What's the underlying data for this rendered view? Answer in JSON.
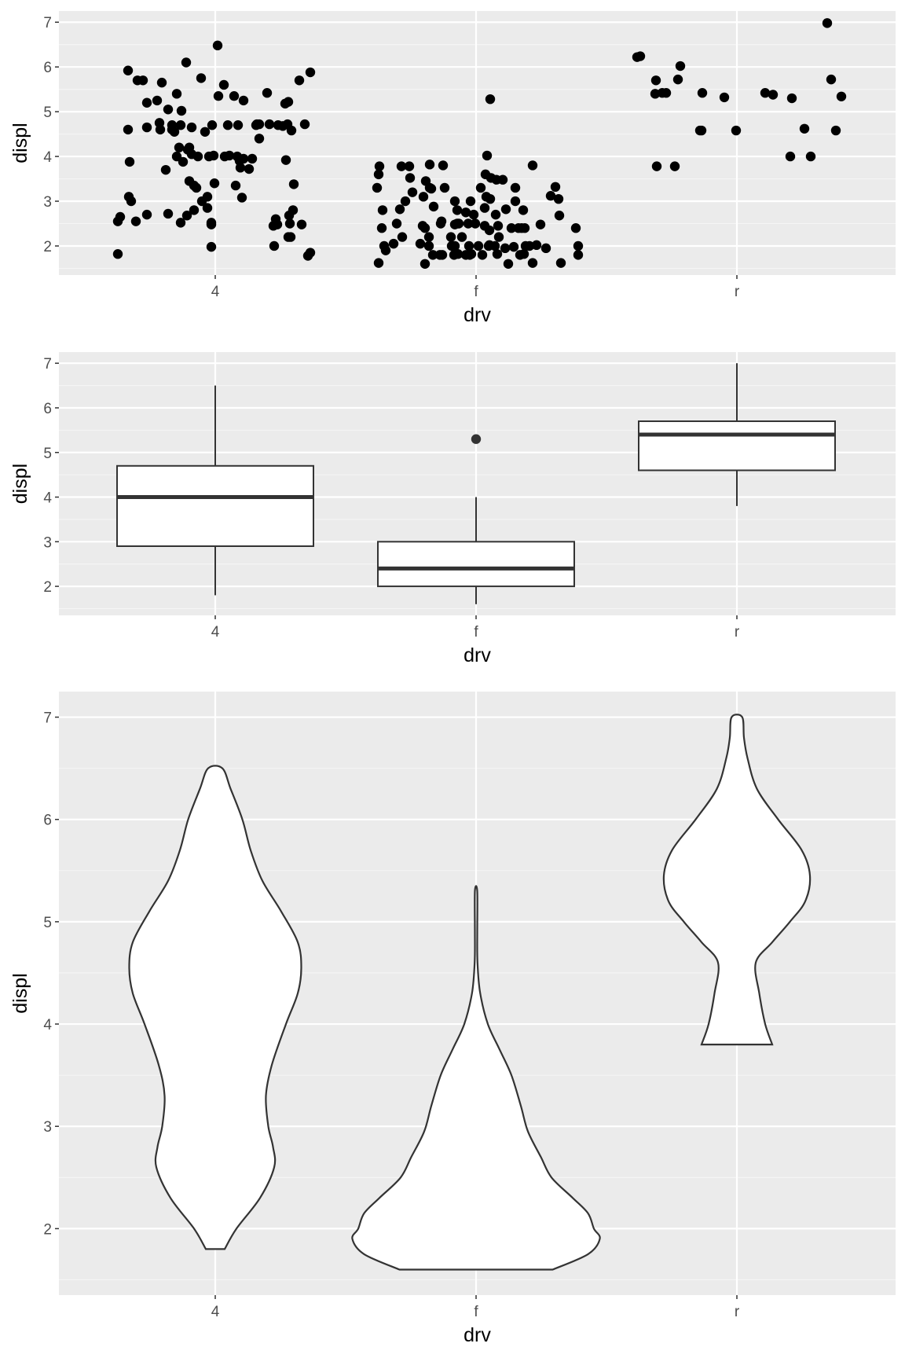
{
  "colors": {
    "panel": "#ebebeb",
    "grid_major": "#ffffff",
    "grid_minor": "#f5f5f5",
    "ink": "#333333",
    "point": "#000000",
    "tick_text": "#4d4d4d"
  },
  "chart_data": [
    {
      "type": "scatter",
      "geom": "jitter",
      "xlabel": "drv",
      "ylabel": "displ",
      "categories": [
        "4",
        "f",
        "r"
      ],
      "yticks": [
        2,
        3,
        4,
        5,
        6,
        7
      ],
      "ylim": [
        1.35,
        7.25
      ],
      "grid": true,
      "points": [
        {
          "x": "4",
          "y": 5.92
        },
        {
          "x": "4",
          "y": 5.7
        },
        {
          "x": "4",
          "y": 5.7
        },
        {
          "x": "4",
          "y": 5.65
        },
        {
          "x": "4",
          "y": 6.1
        },
        {
          "x": "4",
          "y": 5.75
        },
        {
          "x": "4",
          "y": 5.4
        },
        {
          "x": "4",
          "y": 5.25
        },
        {
          "x": "4",
          "y": 5.2
        },
        {
          "x": "4",
          "y": 5.05
        },
        {
          "x": "4",
          "y": 5.02
        },
        {
          "x": "4",
          "y": 4.75
        },
        {
          "x": "4",
          "y": 4.7
        },
        {
          "x": "4",
          "y": 4.65
        },
        {
          "x": "4",
          "y": 4.6
        },
        {
          "x": "4",
          "y": 4.6
        },
        {
          "x": "4",
          "y": 4.55
        },
        {
          "x": "4",
          "y": 4.2
        },
        {
          "x": "4",
          "y": 4.2
        },
        {
          "x": "4",
          "y": 4.0
        },
        {
          "x": "4",
          "y": 4.05
        },
        {
          "x": "4",
          "y": 3.88
        },
        {
          "x": "4",
          "y": 3.7
        },
        {
          "x": "4",
          "y": 3.45
        },
        {
          "x": "4",
          "y": 3.35
        },
        {
          "x": "4",
          "y": 3.3
        },
        {
          "x": "4",
          "y": 3.1
        },
        {
          "x": "4",
          "y": 3.0
        },
        {
          "x": "4",
          "y": 2.8
        },
        {
          "x": "4",
          "y": 2.72
        },
        {
          "x": "4",
          "y": 2.7
        },
        {
          "x": "4",
          "y": 2.68
        },
        {
          "x": "4",
          "y": 2.65
        },
        {
          "x": "4",
          "y": 2.55
        },
        {
          "x": "4",
          "y": 2.55
        },
        {
          "x": "4",
          "y": 2.52
        },
        {
          "x": "4",
          "y": 4.7
        },
        {
          "x": "4",
          "y": 4.7
        },
        {
          "x": "4",
          "y": 4.7
        },
        {
          "x": "4",
          "y": 4.65
        },
        {
          "x": "4",
          "y": 4.55
        },
        {
          "x": "4",
          "y": 4.15
        },
        {
          "x": "4",
          "y": 4.0
        },
        {
          "x": "4",
          "y": 1.98
        },
        {
          "x": "4",
          "y": 5.35
        },
        {
          "x": "4",
          "y": 5.6
        },
        {
          "x": "4",
          "y": 5.35
        },
        {
          "x": "4",
          "y": 5.25
        },
        {
          "x": "4",
          "y": 4.7
        },
        {
          "x": "4",
          "y": 4.7
        },
        {
          "x": "4",
          "y": 4.72
        },
        {
          "x": "4",
          "y": 4.72
        },
        {
          "x": "4",
          "y": 4.68
        },
        {
          "x": "4",
          "y": 4.4
        },
        {
          "x": "4",
          "y": 4.0
        },
        {
          "x": "4",
          "y": 4.0
        },
        {
          "x": "4",
          "y": 4.02
        },
        {
          "x": "4",
          "y": 4.02
        },
        {
          "x": "4",
          "y": 3.95
        },
        {
          "x": "4",
          "y": 3.95
        },
        {
          "x": "4",
          "y": 3.9
        },
        {
          "x": "4",
          "y": 3.75
        },
        {
          "x": "4",
          "y": 3.4
        },
        {
          "x": "4",
          "y": 3.35
        },
        {
          "x": "4",
          "y": 3.08
        },
        {
          "x": "4",
          "y": 2.85
        },
        {
          "x": "4",
          "y": 2.52
        },
        {
          "x": "4",
          "y": 2.48
        },
        {
          "x": "4",
          "y": 2.48
        },
        {
          "x": "4",
          "y": 6.48
        },
        {
          "x": "4",
          "y": 5.88
        },
        {
          "x": "4",
          "y": 5.7
        },
        {
          "x": "4",
          "y": 5.42
        },
        {
          "x": "4",
          "y": 5.22
        },
        {
          "x": "4",
          "y": 5.18
        },
        {
          "x": "4",
          "y": 4.72
        },
        {
          "x": "4",
          "y": 4.72
        },
        {
          "x": "4",
          "y": 4.72
        },
        {
          "x": "4",
          "y": 4.7
        },
        {
          "x": "4",
          "y": 4.58
        },
        {
          "x": "4",
          "y": 4.0
        },
        {
          "x": "4",
          "y": 3.92
        },
        {
          "x": "4",
          "y": 3.72
        },
        {
          "x": "4",
          "y": 3.38
        },
        {
          "x": "4",
          "y": 2.8
        },
        {
          "x": "4",
          "y": 2.68
        },
        {
          "x": "4",
          "y": 2.6
        },
        {
          "x": "4",
          "y": 2.5
        },
        {
          "x": "4",
          "y": 2.48
        },
        {
          "x": "4",
          "y": 2.45
        },
        {
          "x": "4",
          "y": 2.2
        },
        {
          "x": "4",
          "y": 2.2
        },
        {
          "x": "4",
          "y": 2.0
        },
        {
          "x": "4",
          "y": 1.85
        },
        {
          "x": "4",
          "y": 1.78
        },
        {
          "x": "4",
          "y": 1.82
        },
        {
          "x": "4",
          "y": 3.88
        },
        {
          "x": "4",
          "y": 3.1
        },
        {
          "x": "4",
          "y": 3.0
        },
        {
          "x": "4",
          "y": 4.6
        },
        {
          "x": "f",
          "y": 3.78
        },
        {
          "x": "f",
          "y": 3.6
        },
        {
          "x": "f",
          "y": 3.3
        },
        {
          "x": "f",
          "y": 2.8
        },
        {
          "x": "f",
          "y": 2.4
        },
        {
          "x": "f",
          "y": 2.0
        },
        {
          "x": "f",
          "y": 1.62
        },
        {
          "x": "f",
          "y": 1.9
        },
        {
          "x": "f",
          "y": 2.05
        },
        {
          "x": "f",
          "y": 2.2
        },
        {
          "x": "f",
          "y": 2.5
        },
        {
          "x": "f",
          "y": 2.82
        },
        {
          "x": "f",
          "y": 3.0
        },
        {
          "x": "f",
          "y": 3.52
        },
        {
          "x": "f",
          "y": 3.78
        },
        {
          "x": "f",
          "y": 3.78
        },
        {
          "x": "f",
          "y": 3.1
        },
        {
          "x": "f",
          "y": 3.3
        },
        {
          "x": "f",
          "y": 3.2
        },
        {
          "x": "f",
          "y": 2.45
        },
        {
          "x": "f",
          "y": 2.4
        },
        {
          "x": "f",
          "y": 2.2
        },
        {
          "x": "f",
          "y": 2.05
        },
        {
          "x": "f",
          "y": 1.8
        },
        {
          "x": "f",
          "y": 1.6
        },
        {
          "x": "f",
          "y": 3.82
        },
        {
          "x": "f",
          "y": 3.45
        },
        {
          "x": "f",
          "y": 3.28
        },
        {
          "x": "f",
          "y": 2.88
        },
        {
          "x": "f",
          "y": 2.55
        },
        {
          "x": "f",
          "y": 2.5
        },
        {
          "x": "f",
          "y": 2.0
        },
        {
          "x": "f",
          "y": 1.8
        },
        {
          "x": "f",
          "y": 1.8
        },
        {
          "x": "f",
          "y": 3.8
        },
        {
          "x": "f",
          "y": 3.3
        },
        {
          "x": "f",
          "y": 3.0
        },
        {
          "x": "f",
          "y": 2.8
        },
        {
          "x": "f",
          "y": 2.5
        },
        {
          "x": "f",
          "y": 2.2
        },
        {
          "x": "f",
          "y": 2.0
        },
        {
          "x": "f",
          "y": 1.8
        },
        {
          "x": "f",
          "y": 1.8
        },
        {
          "x": "f",
          "y": 2.5
        },
        {
          "x": "f",
          "y": 2.48
        },
        {
          "x": "f",
          "y": 2.2
        },
        {
          "x": "f",
          "y": 2.0
        },
        {
          "x": "f",
          "y": 1.82
        },
        {
          "x": "f",
          "y": 1.8
        },
        {
          "x": "f",
          "y": 2.75
        },
        {
          "x": "f",
          "y": 2.5
        },
        {
          "x": "f",
          "y": 2.0
        },
        {
          "x": "f",
          "y": 1.82
        },
        {
          "x": "f",
          "y": 3.0
        },
        {
          "x": "f",
          "y": 2.7
        },
        {
          "x": "f",
          "y": 2.5
        },
        {
          "x": "f",
          "y": 2.0
        },
        {
          "x": "f",
          "y": 1.8
        },
        {
          "x": "f",
          "y": 3.6
        },
        {
          "x": "f",
          "y": 3.3
        },
        {
          "x": "f",
          "y": 2.45
        },
        {
          "x": "f",
          "y": 2.0
        },
        {
          "x": "f",
          "y": 2.35
        },
        {
          "x": "f",
          "y": 4.02
        },
        {
          "x": "f",
          "y": 3.52
        },
        {
          "x": "f",
          "y": 3.48
        },
        {
          "x": "f",
          "y": 3.05
        },
        {
          "x": "f",
          "y": 2.85
        },
        {
          "x": "f",
          "y": 2.7
        },
        {
          "x": "f",
          "y": 2.02
        },
        {
          "x": "f",
          "y": 5.28
        },
        {
          "x": "f",
          "y": 3.1
        },
        {
          "x": "f",
          "y": 2.82
        },
        {
          "x": "f",
          "y": 2.2
        },
        {
          "x": "f",
          "y": 2.45
        },
        {
          "x": "f",
          "y": 1.82
        },
        {
          "x": "f",
          "y": 3.48
        },
        {
          "x": "f",
          "y": 2.0
        },
        {
          "x": "f",
          "y": 1.95
        },
        {
          "x": "f",
          "y": 1.6
        },
        {
          "x": "f",
          "y": 2.4
        },
        {
          "x": "f",
          "y": 3.3
        },
        {
          "x": "f",
          "y": 3.0
        },
        {
          "x": "f",
          "y": 2.4
        },
        {
          "x": "f",
          "y": 1.98
        },
        {
          "x": "f",
          "y": 1.8
        },
        {
          "x": "f",
          "y": 2.8
        },
        {
          "x": "f",
          "y": 2.4
        },
        {
          "x": "f",
          "y": 1.82
        },
        {
          "x": "f",
          "y": 2.4
        },
        {
          "x": "f",
          "y": 2.0
        },
        {
          "x": "f",
          "y": 2.0
        },
        {
          "x": "f",
          "y": 3.8
        },
        {
          "x": "f",
          "y": 2.02
        },
        {
          "x": "f",
          "y": 1.62
        },
        {
          "x": "f",
          "y": 2.48
        },
        {
          "x": "f",
          "y": 3.12
        },
        {
          "x": "f",
          "y": 1.95
        },
        {
          "x": "f",
          "y": 3.32
        },
        {
          "x": "f",
          "y": 1.62
        },
        {
          "x": "f",
          "y": 3.05
        },
        {
          "x": "f",
          "y": 2.68
        },
        {
          "x": "f",
          "y": 2.4
        },
        {
          "x": "f",
          "y": 2.0
        },
        {
          "x": "f",
          "y": 1.8
        },
        {
          "x": "r",
          "y": 6.22
        },
        {
          "x": "r",
          "y": 6.24
        },
        {
          "x": "r",
          "y": 5.7
        },
        {
          "x": "r",
          "y": 5.4
        },
        {
          "x": "r",
          "y": 5.42
        },
        {
          "x": "r",
          "y": 5.42
        },
        {
          "x": "r",
          "y": 3.78
        },
        {
          "x": "r",
          "y": 3.78
        },
        {
          "x": "r",
          "y": 6.02
        },
        {
          "x": "r",
          "y": 5.72
        },
        {
          "x": "r",
          "y": 5.42
        },
        {
          "x": "r",
          "y": 4.58
        },
        {
          "x": "r",
          "y": 4.58
        },
        {
          "x": "r",
          "y": 5.32
        },
        {
          "x": "r",
          "y": 4.58
        },
        {
          "x": "r",
          "y": 5.42
        },
        {
          "x": "r",
          "y": 5.38
        },
        {
          "x": "r",
          "y": 5.3
        },
        {
          "x": "r",
          "y": 4.0
        },
        {
          "x": "r",
          "y": 4.62
        },
        {
          "x": "r",
          "y": 4.0
        },
        {
          "x": "r",
          "y": 6.98
        },
        {
          "x": "r",
          "y": 5.72
        },
        {
          "x": "r",
          "y": 4.58
        },
        {
          "x": "r",
          "y": 5.34
        }
      ]
    },
    {
      "type": "box",
      "xlabel": "drv",
      "ylabel": "displ",
      "categories": [
        "4",
        "f",
        "r"
      ],
      "yticks": [
        2,
        3,
        4,
        5,
        6,
        7
      ],
      "ylim": [
        1.35,
        7.25
      ],
      "grid": true,
      "boxes": [
        {
          "category": "4",
          "min": 1.8,
          "q1": 2.9,
          "median": 4.0,
          "q3": 4.7,
          "max": 6.5,
          "outliers": []
        },
        {
          "category": "f",
          "min": 1.6,
          "q1": 2.0,
          "median": 2.4,
          "q3": 3.0,
          "max": 4.0,
          "outliers": [
            5.3
          ]
        },
        {
          "category": "r",
          "min": 3.8,
          "q1": 4.6,
          "median": 5.4,
          "q3": 5.7,
          "max": 7.0,
          "outliers": []
        }
      ]
    },
    {
      "type": "violin",
      "xlabel": "drv",
      "ylabel": "displ",
      "categories": [
        "4",
        "f",
        "r"
      ],
      "yticks": [
        2,
        3,
        4,
        5,
        6,
        7
      ],
      "ylim": [
        1.35,
        7.25
      ],
      "grid": true,
      "violins": [
        {
          "category": "4",
          "profile": [
            [
              1.8,
              0.08
            ],
            [
              2.0,
              0.18
            ],
            [
              2.3,
              0.38
            ],
            [
              2.6,
              0.5
            ],
            [
              2.8,
              0.49
            ],
            [
              3.0,
              0.45
            ],
            [
              3.3,
              0.43
            ],
            [
              3.6,
              0.48
            ],
            [
              4.0,
              0.6
            ],
            [
              4.3,
              0.7
            ],
            [
              4.55,
              0.73
            ],
            [
              4.8,
              0.7
            ],
            [
              5.1,
              0.56
            ],
            [
              5.4,
              0.4
            ],
            [
              5.7,
              0.3
            ],
            [
              6.0,
              0.23
            ],
            [
              6.3,
              0.13
            ],
            [
              6.5,
              0.06
            ]
          ]
        },
        {
          "category": "f",
          "profile": [
            [
              1.6,
              0.65
            ],
            [
              1.75,
              0.95
            ],
            [
              1.9,
              1.05
            ],
            [
              2.0,
              1.0
            ],
            [
              2.15,
              0.95
            ],
            [
              2.3,
              0.82
            ],
            [
              2.5,
              0.64
            ],
            [
              2.7,
              0.55
            ],
            [
              2.95,
              0.44
            ],
            [
              3.2,
              0.38
            ],
            [
              3.5,
              0.3
            ],
            [
              3.75,
              0.2
            ],
            [
              4.0,
              0.1
            ],
            [
              4.3,
              0.035
            ],
            [
              4.6,
              0.012
            ],
            [
              4.9,
              0.01
            ],
            [
              5.3,
              0.01
            ]
          ]
        },
        {
          "category": "r",
          "profile": [
            [
              3.8,
              0.3
            ],
            [
              4.0,
              0.24
            ],
            [
              4.3,
              0.19
            ],
            [
              4.6,
              0.16
            ],
            [
              4.8,
              0.3
            ],
            [
              5.0,
              0.45
            ],
            [
              5.2,
              0.58
            ],
            [
              5.45,
              0.62
            ],
            [
              5.7,
              0.55
            ],
            [
              6.0,
              0.35
            ],
            [
              6.3,
              0.17
            ],
            [
              6.6,
              0.09
            ],
            [
              6.8,
              0.06
            ],
            [
              7.0,
              0.045
            ]
          ]
        }
      ]
    }
  ]
}
